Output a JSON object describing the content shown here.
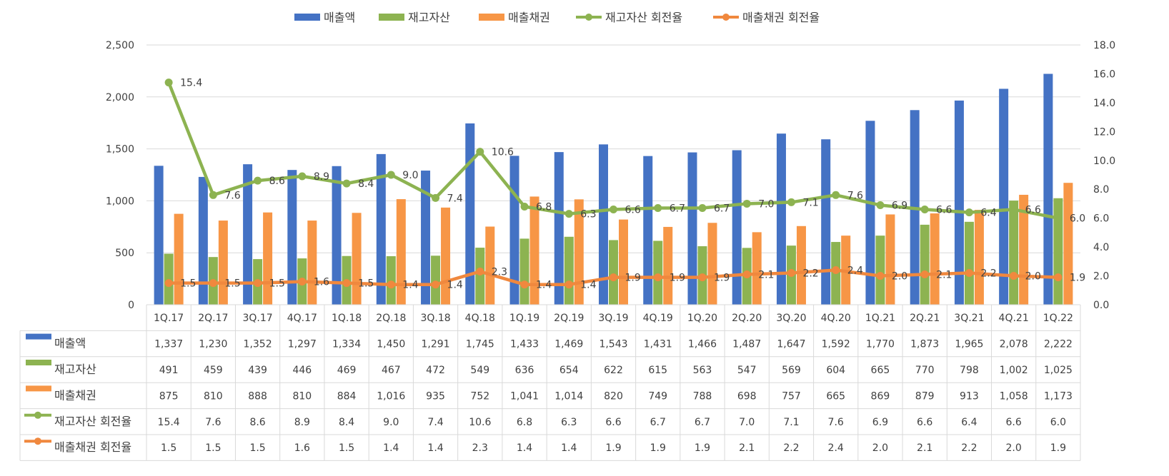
{
  "chart_data": {
    "type": "bar",
    "categories": [
      "1Q.17",
      "2Q.17",
      "3Q.17",
      "4Q.17",
      "1Q.18",
      "2Q.18",
      "3Q.18",
      "4Q.18",
      "1Q.19",
      "2Q.19",
      "3Q.19",
      "4Q.19",
      "1Q.20",
      "2Q.20",
      "3Q.20",
      "4Q.20",
      "1Q.21",
      "2Q.21",
      "3Q.21",
      "4Q.21",
      "1Q.22"
    ],
    "series": [
      {
        "name": "매출액",
        "type": "bar",
        "axis": "left",
        "color": "#4472C4",
        "values": [
          1337,
          1230,
          1352,
          1297,
          1334,
          1450,
          1291,
          1745,
          1433,
          1469,
          1543,
          1431,
          1466,
          1487,
          1647,
          1592,
          1770,
          1873,
          1965,
          2078,
          2222
        ],
        "table_values": [
          "1,337",
          "1,230",
          "1,352",
          "1,297",
          "1,334",
          "1,450",
          "1,291",
          "1,745",
          "1,433",
          "1,469",
          "1,543",
          "1,431",
          "1,466",
          "1,487",
          "1,647",
          "1,592",
          "1,770",
          "1,873",
          "1,965",
          "2,078",
          "2,222"
        ]
      },
      {
        "name": "재고자산",
        "type": "bar",
        "axis": "left",
        "color": "#8DB351",
        "values": [
          491,
          459,
          439,
          446,
          469,
          467,
          472,
          549,
          636,
          654,
          622,
          615,
          563,
          547,
          569,
          604,
          665,
          770,
          798,
          1002,
          1025
        ],
        "table_values": [
          "491",
          "459",
          "439",
          "446",
          "469",
          "467",
          "472",
          "549",
          "636",
          "654",
          "622",
          "615",
          "563",
          "547",
          "569",
          "604",
          "665",
          "770",
          "798",
          "1,002",
          "1,025"
        ]
      },
      {
        "name": "매출채권",
        "type": "bar",
        "axis": "left",
        "color": "#F79646",
        "values": [
          875,
          810,
          888,
          810,
          884,
          1016,
          935,
          752,
          1041,
          1014,
          820,
          749,
          788,
          698,
          757,
          665,
          869,
          879,
          913,
          1058,
          1173
        ],
        "table_values": [
          "875",
          "810",
          "888",
          "810",
          "884",
          "1,016",
          "935",
          "752",
          "1,041",
          "1,014",
          "820",
          "749",
          "788",
          "698",
          "757",
          "665",
          "869",
          "879",
          "913",
          "1,058",
          "1,173"
        ]
      },
      {
        "name": "재고자산 회전율",
        "type": "line",
        "axis": "right",
        "color": "#8DB351",
        "values": [
          15.4,
          7.6,
          8.6,
          8.9,
          8.4,
          9.0,
          7.4,
          10.6,
          6.8,
          6.3,
          6.6,
          6.7,
          6.7,
          7.0,
          7.1,
          7.6,
          6.9,
          6.6,
          6.4,
          6.6,
          6.0
        ],
        "table_values": [
          "15.4",
          "7.6",
          "8.6",
          "8.9",
          "8.4",
          "9.0",
          "7.4",
          "10.6",
          "6.8",
          "6.3",
          "6.6",
          "6.7",
          "6.7",
          "7.0",
          "7.1",
          "7.6",
          "6.9",
          "6.6",
          "6.4",
          "6.6",
          "6.0"
        ]
      },
      {
        "name": "매출채권 회전율",
        "type": "line",
        "axis": "right",
        "color": "#F0883E",
        "values": [
          1.5,
          1.5,
          1.5,
          1.6,
          1.5,
          1.4,
          1.4,
          2.3,
          1.4,
          1.4,
          1.9,
          1.9,
          1.9,
          2.1,
          2.2,
          2.4,
          2.0,
          2.1,
          2.2,
          2.0,
          1.9
        ],
        "table_values": [
          "1.5",
          "1.5",
          "1.5",
          "1.6",
          "1.5",
          "1.4",
          "1.4",
          "2.3",
          "1.4",
          "1.4",
          "1.9",
          "1.9",
          "1.9",
          "2.1",
          "2.2",
          "2.4",
          "2.0",
          "2.1",
          "2.2",
          "2.0",
          "1.9"
        ]
      }
    ],
    "y_left": {
      "range": [
        0,
        2500
      ],
      "ticks": [
        0,
        500,
        1000,
        1500,
        2000,
        2500
      ],
      "tick_labels": [
        "0",
        "500",
        "1,000",
        "1,500",
        "2,000",
        "2,500"
      ]
    },
    "y_right": {
      "range": [
        0,
        18
      ],
      "ticks": [
        0,
        2,
        4,
        6,
        8,
        10,
        12,
        14,
        16,
        18
      ],
      "tick_labels": [
        "0.0",
        "2.0",
        "4.0",
        "6.0",
        "8.0",
        "10.0",
        "12.0",
        "14.0",
        "16.0",
        "18.0"
      ]
    },
    "grid": true,
    "legend_position": "top",
    "data_table": true
  }
}
